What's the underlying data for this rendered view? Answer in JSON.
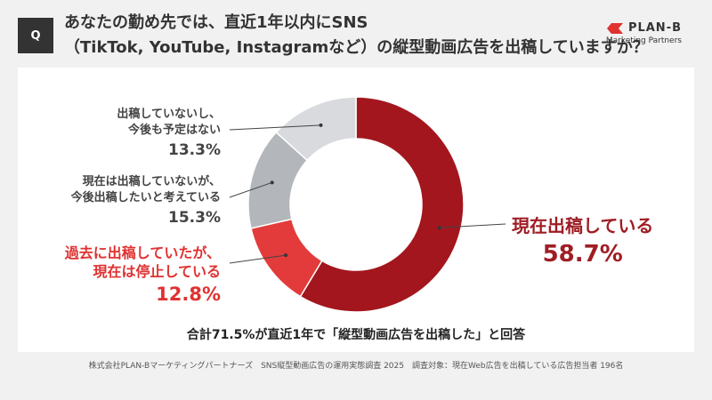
{
  "header": {
    "badge": "Q",
    "question_line1": "あなたの勤め先では、直近1年以内にSNS",
    "question_line2": "（TikTok, YouTube, Instagramなど）の縦型動画広告を出稿していますか？"
  },
  "logo": {
    "name": "PLAN-B",
    "sub": "Marketing Partners",
    "color": "#e03131"
  },
  "chart_data": {
    "type": "pie",
    "categories": [
      "現在出稿している",
      "過去に出稿していたが、現在は停止している",
      "現在は出稿していないが、今後出稿したいと考えている",
      "出稿していないし、今後も予定はない"
    ],
    "values": [
      58.7,
      12.8,
      15.3,
      13.3
    ],
    "colors": [
      "#a3161d",
      "#e33b3b",
      "#b3b6bb",
      "#d9dadd"
    ],
    "labels": [
      {
        "lines": [
          "現在出稿している"
        ],
        "pct": "58.7%"
      },
      {
        "lines": [
          "過去に出稿していたが、",
          "現在は停止している"
        ],
        "pct": "12.8%"
      },
      {
        "lines": [
          "現在は出稿していないが、",
          "今後出稿したいと考えている"
        ],
        "pct": "15.3%"
      },
      {
        "lines": [
          "出稿していないし、",
          "今後も予定はない"
        ],
        "pct": "13.3%"
      }
    ],
    "donut": true
  },
  "summary": "合計71.5%が直近1年で「縦型動画広告を出稿した」と回答",
  "footer": "株式会社PLAN-Bマーケティングパートナーズ　SNS縦型動画広告の運用実態調査 2025　調査対象：現在Web広告を出稿している広告担当者 196名"
}
